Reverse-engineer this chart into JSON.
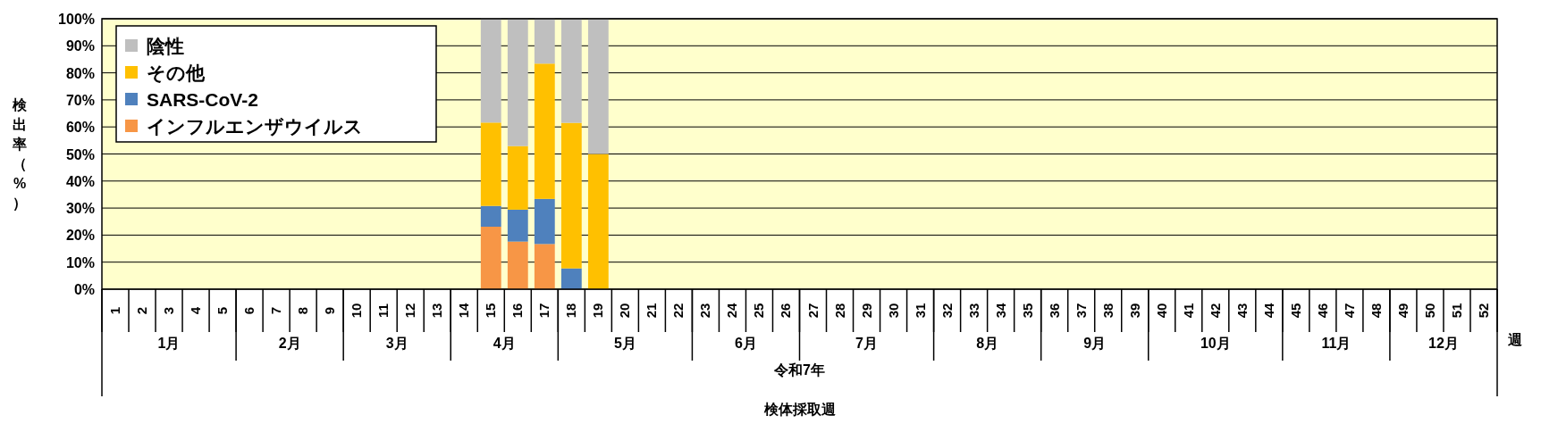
{
  "chart_data": {
    "type": "bar",
    "stacked": true,
    "ylabel": "検出率（%）",
    "categories": [
      "1",
      "2",
      "3",
      "4",
      "5",
      "6",
      "7",
      "8",
      "9",
      "10",
      "11",
      "12",
      "13",
      "14",
      "15",
      "16",
      "17",
      "18",
      "19",
      "20",
      "21",
      "22",
      "23",
      "24",
      "25",
      "26",
      "27",
      "28",
      "29",
      "30",
      "31",
      "32",
      "33",
      "34",
      "35",
      "36",
      "37",
      "38",
      "39",
      "40",
      "41",
      "42",
      "43",
      "44",
      "45",
      "46",
      "47",
      "48",
      "49",
      "50",
      "51",
      "52"
    ],
    "series": [
      {
        "name": "インフルエンザウイルス",
        "color": "#f79646",
        "values": [
          null,
          null,
          null,
          null,
          null,
          null,
          null,
          null,
          null,
          null,
          null,
          null,
          null,
          null,
          23.1,
          17.6,
          16.7,
          0,
          0,
          null,
          null,
          null,
          null,
          null,
          null,
          null,
          null,
          null,
          null,
          null,
          null,
          null,
          null,
          null,
          null,
          null,
          null,
          null,
          null,
          null,
          null,
          null,
          null,
          null,
          null,
          null,
          null,
          null,
          null,
          null,
          null,
          null
        ]
      },
      {
        "name": "SARS-CoV-2",
        "color": "#4f81bd",
        "values": [
          null,
          null,
          null,
          null,
          null,
          null,
          null,
          null,
          null,
          null,
          null,
          null,
          null,
          null,
          7.7,
          11.8,
          16.7,
          7.7,
          0,
          null,
          null,
          null,
          null,
          null,
          null,
          null,
          null,
          null,
          null,
          null,
          null,
          null,
          null,
          null,
          null,
          null,
          null,
          null,
          null,
          null,
          null,
          null,
          null,
          null,
          null,
          null,
          null,
          null,
          null,
          null,
          null,
          null
        ]
      },
      {
        "name": "その他",
        "color": "#ffc000",
        "values": [
          null,
          null,
          null,
          null,
          null,
          null,
          null,
          null,
          null,
          null,
          null,
          null,
          null,
          null,
          30.8,
          23.5,
          50,
          53.8,
          50,
          null,
          null,
          null,
          null,
          null,
          null,
          null,
          null,
          null,
          null,
          null,
          null,
          null,
          null,
          null,
          null,
          null,
          null,
          null,
          null,
          null,
          null,
          null,
          null,
          null,
          null,
          null,
          null,
          null,
          null,
          null,
          null,
          null
        ]
      },
      {
        "name": "陰性",
        "color": "#bfbfbf",
        "values": [
          null,
          null,
          null,
          null,
          null,
          null,
          null,
          null,
          null,
          null,
          null,
          null,
          null,
          null,
          38.5,
          47.1,
          16.7,
          38.5,
          50,
          null,
          null,
          null,
          null,
          null,
          null,
          null,
          null,
          null,
          null,
          null,
          null,
          null,
          null,
          null,
          null,
          null,
          null,
          null,
          null,
          null,
          null,
          null,
          null,
          null,
          null,
          null,
          null,
          null,
          null,
          null,
          null,
          null
        ]
      }
    ],
    "ylim": [
      0,
      100
    ],
    "yticks": [
      {
        "value": 0,
        "label": "0%"
      },
      {
        "value": 10,
        "label": "10%"
      },
      {
        "value": 20,
        "label": "20%"
      },
      {
        "value": 30,
        "label": "30%"
      },
      {
        "value": 40,
        "label": "40%"
      },
      {
        "value": 50,
        "label": "50%"
      },
      {
        "value": 60,
        "label": "60%"
      },
      {
        "value": 70,
        "label": "70%"
      },
      {
        "value": 80,
        "label": "80%"
      },
      {
        "value": 90,
        "label": "90%"
      },
      {
        "value": 100,
        "label": "100%"
      }
    ],
    "grid": "y",
    "legend": "top left",
    "annotations": [
      "1月",
      "2月",
      "3月",
      "4月",
      "5月",
      "6月",
      "7月",
      "8月",
      "9月",
      "10月",
      "11月",
      "12月",
      "令和7年",
      "週",
      "検体採取週"
    ]
  }
}
